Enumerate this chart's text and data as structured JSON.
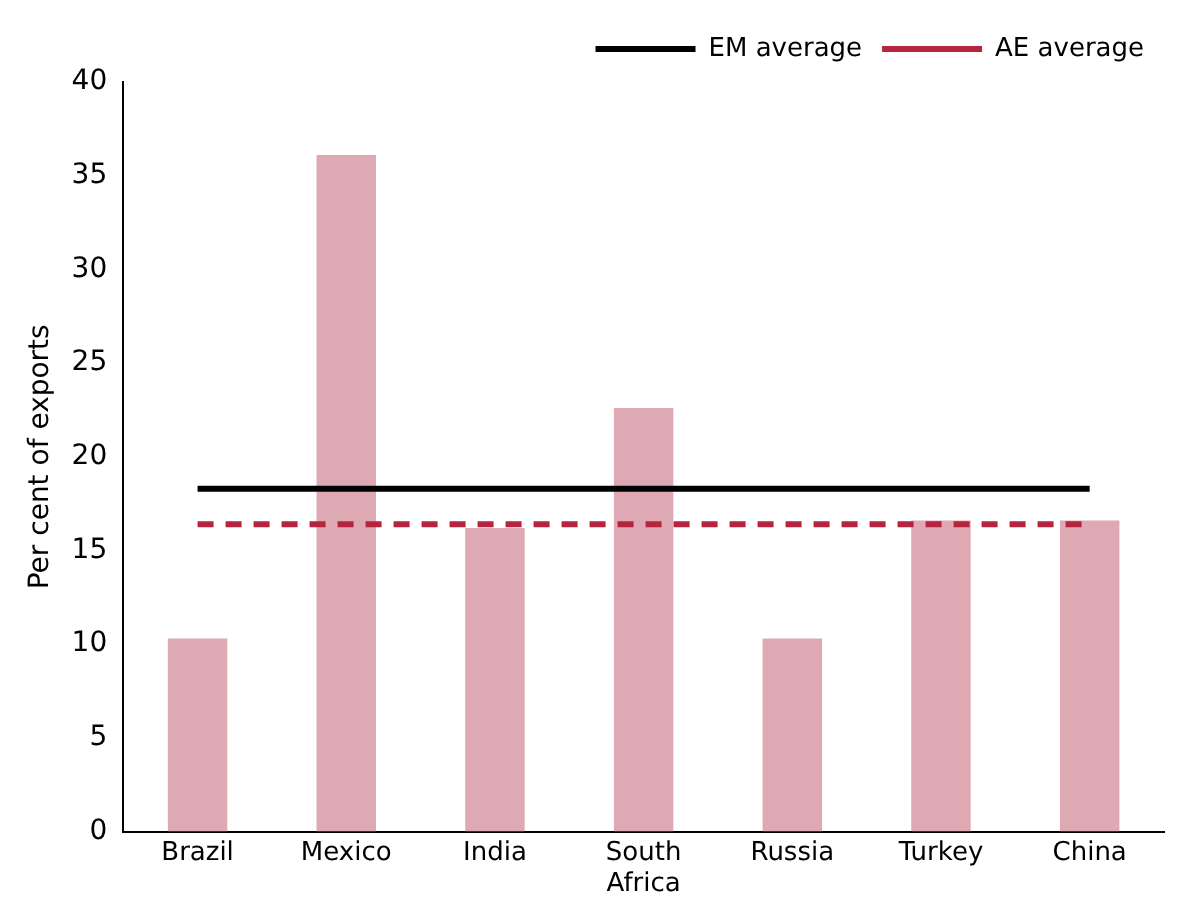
{
  "chart_data": {
    "type": "bar",
    "ylabel": "Per cent of exports",
    "categories": [
      "Brazil",
      "Mexico",
      "India",
      "South Africa",
      "Russia",
      "Turkey",
      "China"
    ],
    "series": [
      {
        "color": "#dfa9b3",
        "values": [
          10.3,
          36.1,
          16.2,
          22.6,
          10.3,
          16.6,
          16.6
        ]
      },
      {
        "type": "line",
        "name": "EM average",
        "color": "#000000",
        "line_style": "solid",
        "values": [
          18.3,
          18.3,
          18.3,
          18.3,
          18.3,
          18.3,
          18.3
        ]
      },
      {
        "type": "line",
        "name": "AE average",
        "color": "#b5253f",
        "line_style": "dashed",
        "values": [
          16.4,
          16.4,
          16.4,
          16.4,
          16.4,
          16.4,
          16.4
        ]
      }
    ],
    "ylim": [
      0,
      40
    ],
    "yticks": [
      0,
      5,
      10,
      15,
      20,
      25,
      30,
      35,
      40
    ],
    "grid": false,
    "legend": "top right",
    "marker": "none"
  }
}
